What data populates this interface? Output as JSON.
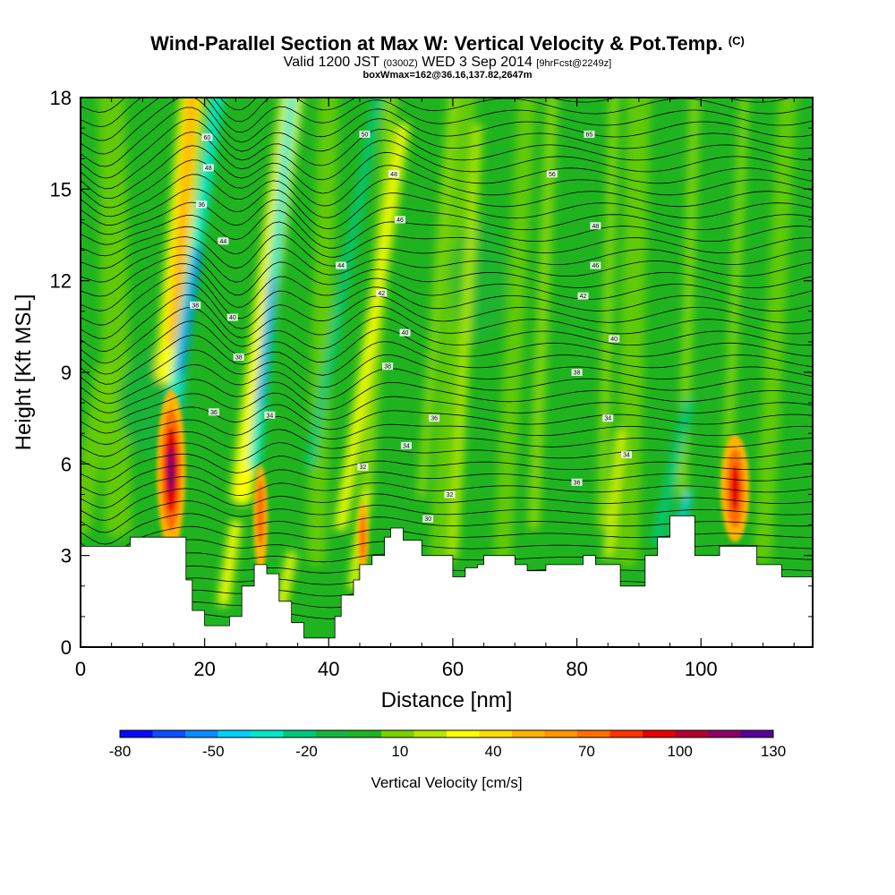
{
  "titles": {
    "main": "Wind-Parallel Section at Max W: Vertical Velocity & Pot.Temp.",
    "main_suffix": "(C)",
    "valid_pre": "Valid 1200 JST",
    "valid_small": "(0300Z)",
    "valid_post": "WED 3 Sep 2014",
    "fcst_small": "[9hrFcst@2249z]",
    "box": "boxWmax=162@36.16,137.82,2647m"
  },
  "chart_data": {
    "type": "heatmap",
    "title": "Wind-Parallel Section at Max W: Vertical Velocity & Pot.Temp.",
    "xlabel": "Distance [nm]",
    "ylabel": "Height [Kft MSL]",
    "xlim": [
      0,
      118
    ],
    "ylim": [
      0,
      18
    ],
    "x_ticks": [
      0,
      20,
      40,
      60,
      80,
      100
    ],
    "y_ticks": [
      0,
      3,
      6,
      9,
      12,
      15,
      18
    ],
    "colorbar": {
      "label": "Vertical Velocity [cm/s]",
      "tick_labels": [
        -80,
        -50,
        -20,
        10,
        40,
        70,
        100,
        130
      ],
      "colors": [
        "#0a0aff",
        "#0b4dff",
        "#0a8cff",
        "#00d2ff",
        "#00e8c8",
        "#00c878",
        "#1ab43c",
        "#1fb41f",
        "#78d200",
        "#b4e600",
        "#ffff00",
        "#ffdc00",
        "#ffb400",
        "#ff9600",
        "#ff6e00",
        "#ff3200",
        "#e60000",
        "#b4002d",
        "#8c0064",
        "#5a0096"
      ]
    },
    "terrain": [
      [
        0,
        3.3
      ],
      [
        6,
        3.3
      ],
      [
        8,
        3.6
      ],
      [
        16,
        3.6
      ],
      [
        17,
        2.2
      ],
      [
        18,
        1.2
      ],
      [
        20,
        0.7
      ],
      [
        23,
        0.7
      ],
      [
        24,
        1.0
      ],
      [
        26,
        2.0
      ],
      [
        28,
        2.7
      ],
      [
        30,
        2.4
      ],
      [
        32,
        1.5
      ],
      [
        34,
        0.8
      ],
      [
        36,
        0.3
      ],
      [
        40,
        0.3
      ],
      [
        41,
        1.0
      ],
      [
        42,
        1.7
      ],
      [
        44,
        2.2
      ],
      [
        45,
        2.7
      ],
      [
        47,
        3.0
      ],
      [
        49,
        3.6
      ],
      [
        50,
        3.9
      ],
      [
        52,
        3.5
      ],
      [
        55,
        3.0
      ],
      [
        58,
        3.0
      ],
      [
        60,
        2.3
      ],
      [
        62,
        2.6
      ],
      [
        64,
        2.7
      ],
      [
        65,
        3.0
      ],
      [
        68,
        3.0
      ],
      [
        70,
        2.7
      ],
      [
        72,
        2.5
      ],
      [
        75,
        2.7
      ],
      [
        78,
        2.7
      ],
      [
        81,
        3.0
      ],
      [
        83,
        2.7
      ],
      [
        85,
        2.7
      ],
      [
        87,
        2.0
      ],
      [
        89,
        2.0
      ],
      [
        91,
        3.0
      ],
      [
        93,
        3.6
      ],
      [
        95,
        4.3
      ],
      [
        97,
        4.3
      ],
      [
        99,
        3.0
      ],
      [
        101,
        3.0
      ],
      [
        103,
        3.3
      ],
      [
        107,
        3.3
      ],
      [
        109,
        2.7
      ],
      [
        111,
        2.7
      ],
      [
        113,
        2.3
      ],
      [
        118,
        2.0
      ]
    ],
    "pot_temp_labels": [
      {
        "text": "60",
        "x": 20.4,
        "y": 16.7
      },
      {
        "text": "50",
        "x": 45.8,
        "y": 16.8
      },
      {
        "text": "65",
        "x": 82.0,
        "y": 16.8
      },
      {
        "text": "48",
        "x": 20.6,
        "y": 15.7
      },
      {
        "text": "48",
        "x": 50.5,
        "y": 15.5
      },
      {
        "text": "56",
        "x": 76.0,
        "y": 15.5
      },
      {
        "text": "36",
        "x": 19.5,
        "y": 14.5
      },
      {
        "text": "46",
        "x": 51.5,
        "y": 14.0
      },
      {
        "text": "48",
        "x": 83.0,
        "y": 13.8
      },
      {
        "text": "44",
        "x": 23.0,
        "y": 13.3
      },
      {
        "text": "44",
        "x": 42.0,
        "y": 12.5
      },
      {
        "text": "46",
        "x": 83.0,
        "y": 12.5
      },
      {
        "text": "42",
        "x": 48.5,
        "y": 11.6
      },
      {
        "text": "42",
        "x": 81.0,
        "y": 11.5
      },
      {
        "text": "38",
        "x": 18.5,
        "y": 11.2
      },
      {
        "text": "40",
        "x": 24.5,
        "y": 10.8
      },
      {
        "text": "40",
        "x": 52.3,
        "y": 10.3
      },
      {
        "text": "40",
        "x": 86.0,
        "y": 10.1
      },
      {
        "text": "38",
        "x": 25.5,
        "y": 9.5
      },
      {
        "text": "38",
        "x": 49.5,
        "y": 9.2
      },
      {
        "text": "38",
        "x": 80.0,
        "y": 9.0
      },
      {
        "text": "36",
        "x": 21.5,
        "y": 7.7
      },
      {
        "text": "34",
        "x": 30.5,
        "y": 7.6
      },
      {
        "text": "36",
        "x": 57.0,
        "y": 7.5
      },
      {
        "text": "34",
        "x": 85.0,
        "y": 7.5
      },
      {
        "text": "34",
        "x": 52.5,
        "y": 6.6
      },
      {
        "text": "34",
        "x": 88.0,
        "y": 6.3
      },
      {
        "text": "32",
        "x": 45.5,
        "y": 5.9
      },
      {
        "text": "36",
        "x": 80.0,
        "y": 5.4
      },
      {
        "text": "32",
        "x": 59.5,
        "y": 5.0
      },
      {
        "text": "30",
        "x": 56.0,
        "y": 4.2
      }
    ]
  }
}
